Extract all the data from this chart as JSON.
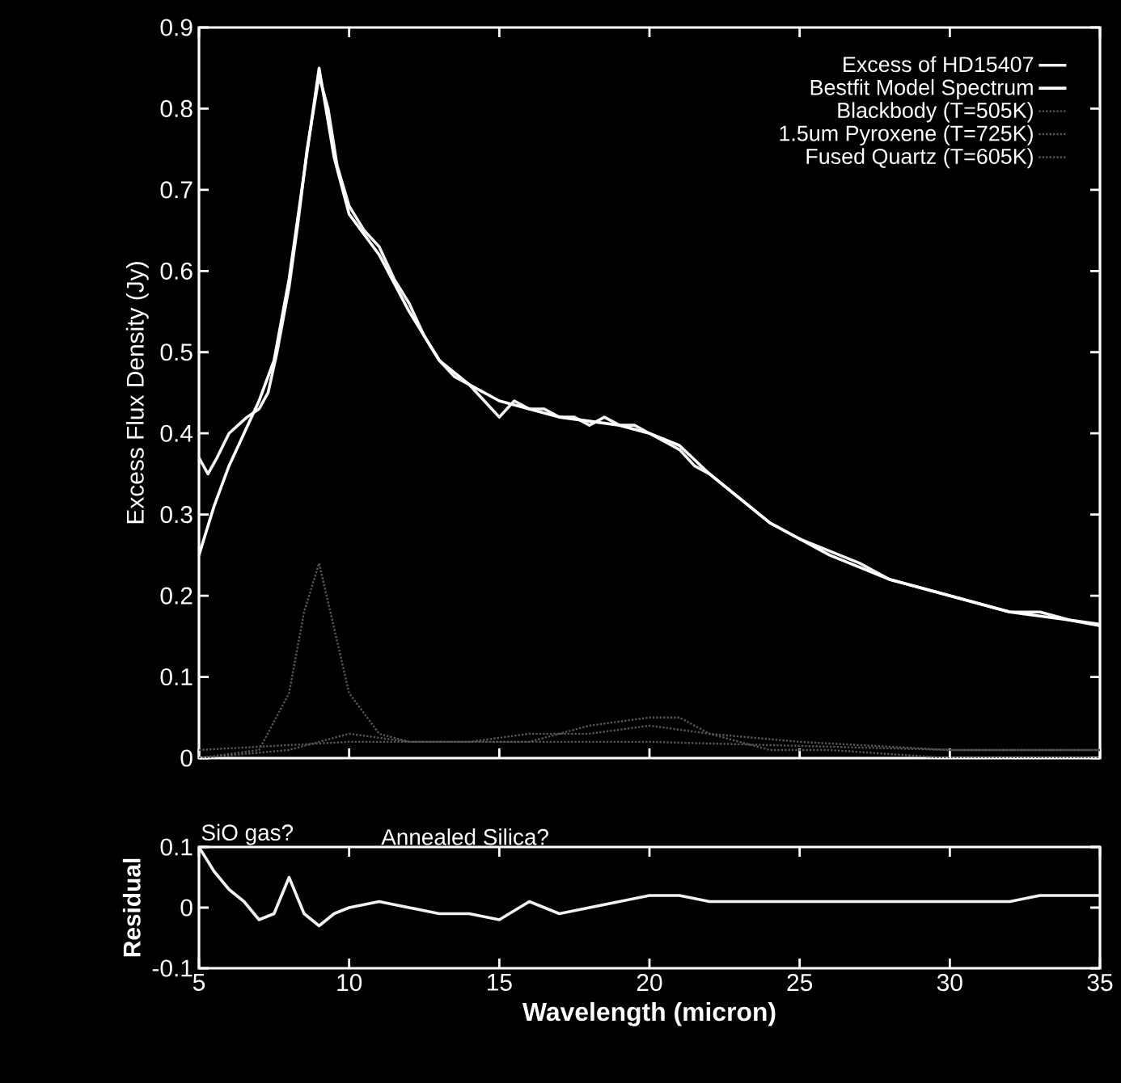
{
  "chart_data": [
    {
      "type": "line",
      "ylabel": "Excess Flux Density (Jy)",
      "xlim": [
        5,
        35
      ],
      "xticks": [
        5,
        10,
        15,
        20,
        25,
        30,
        35
      ],
      "ylim": [
        0,
        0.9
      ],
      "yticks": [
        0,
        0.1,
        0.2,
        0.3,
        0.4,
        0.5,
        0.6,
        0.7,
        0.8,
        0.9
      ],
      "tick_labels": "y",
      "legend": "top right",
      "grid": false,
      "series": [
        {
          "name": "Excess of HD15407",
          "color": "#f2f2f2",
          "line_style": "solid",
          "x": [
            5,
            5.3,
            5.6,
            6,
            6.3,
            6.6,
            7,
            7.3,
            7.6,
            8,
            8.3,
            8.6,
            9,
            9.3,
            9.6,
            10,
            10.5,
            11,
            11.5,
            12,
            12.5,
            13,
            13.5,
            14,
            14.5,
            15,
            15.5,
            16,
            16.5,
            17,
            17.5,
            18,
            18.5,
            19,
            19.5,
            20,
            20.5,
            21,
            21.5,
            22,
            23,
            24,
            25,
            26,
            27,
            28,
            29,
            30,
            31,
            32,
            33,
            34,
            35
          ],
          "values": [
            0.37,
            0.35,
            0.37,
            0.4,
            0.41,
            0.42,
            0.43,
            0.45,
            0.5,
            0.58,
            0.66,
            0.75,
            0.84,
            0.8,
            0.73,
            0.68,
            0.65,
            0.63,
            0.59,
            0.56,
            0.52,
            0.49,
            0.47,
            0.46,
            0.44,
            0.42,
            0.44,
            0.43,
            0.43,
            0.42,
            0.42,
            0.41,
            0.42,
            0.41,
            0.41,
            0.4,
            0.39,
            0.38,
            0.36,
            0.35,
            0.32,
            0.29,
            0.27,
            0.255,
            0.24,
            0.22,
            0.21,
            0.2,
            0.19,
            0.18,
            0.18,
            0.17,
            0.165
          ]
        },
        {
          "name": "Bestfit Model Spectrum",
          "color": "#ffffff",
          "line_style": "solid",
          "x": [
            5,
            5.5,
            6,
            6.5,
            7,
            7.5,
            8,
            8.5,
            9,
            9.5,
            10,
            11,
            12,
            13,
            14,
            15,
            16,
            17,
            18,
            19,
            20,
            21,
            22,
            23,
            24,
            25,
            26,
            27,
            28,
            29,
            30,
            31,
            32,
            33,
            34,
            35
          ],
          "values": [
            0.25,
            0.31,
            0.36,
            0.4,
            0.44,
            0.49,
            0.59,
            0.72,
            0.85,
            0.74,
            0.67,
            0.62,
            0.55,
            0.49,
            0.46,
            0.44,
            0.43,
            0.42,
            0.415,
            0.41,
            0.4,
            0.385,
            0.35,
            0.32,
            0.29,
            0.27,
            0.25,
            0.235,
            0.22,
            0.21,
            0.2,
            0.19,
            0.18,
            0.175,
            0.17,
            0.163
          ]
        },
        {
          "name": "Blackbody (T=505K)",
          "color": "#555555",
          "line_style": "dotted",
          "x": [
            5,
            10,
            15,
            20,
            25,
            30,
            35
          ],
          "values": [
            0.01,
            0.02,
            0.02,
            0.02,
            0.015,
            0.01,
            0.01
          ]
        },
        {
          "name": "1.5um Pyroxene (T=725K)",
          "color": "#555555",
          "line_style": "dotted",
          "x": [
            5,
            8,
            10,
            12,
            14,
            16,
            18,
            20,
            22,
            25,
            30,
            35
          ],
          "values": [
            0,
            0.01,
            0.03,
            0.02,
            0.02,
            0.03,
            0.03,
            0.04,
            0.03,
            0.02,
            0.01,
            0.01
          ]
        },
        {
          "name": "Fused Quartz (T=605K)",
          "color": "#555555",
          "line_style": "dotted",
          "x": [
            5,
            7,
            8,
            8.5,
            9,
            9.5,
            10,
            11,
            12,
            14,
            16,
            18,
            20,
            21,
            22,
            24,
            26,
            30,
            35
          ],
          "values": [
            0,
            0.01,
            0.08,
            0.18,
            0.24,
            0.16,
            0.08,
            0.03,
            0.02,
            0.02,
            0.02,
            0.04,
            0.05,
            0.05,
            0.03,
            0.01,
            0.01,
            0,
            0
          ]
        }
      ]
    },
    {
      "type": "line",
      "xlabel": "Wavelength (micron)",
      "ylabel": "Residual",
      "xlim": [
        5,
        35
      ],
      "xticks": [
        5,
        10,
        15,
        20,
        25,
        30,
        35
      ],
      "ylim": [
        -0.1,
        0.1
      ],
      "yticks": [
        -0.1,
        0,
        0.1
      ],
      "grid": false,
      "annotations": [
        "SiO gas?",
        "Annealed Silica?"
      ],
      "series": [
        {
          "color": "#f2f2f2",
          "line_style": "solid",
          "x": [
            5,
            5.5,
            6,
            6.5,
            7,
            7.5,
            8,
            8.5,
            9,
            9.5,
            10,
            11,
            12,
            13,
            14,
            15,
            16,
            17,
            18,
            19,
            20,
            21,
            22,
            23,
            25,
            27,
            30,
            32,
            33,
            34,
            35
          ],
          "values": [
            0.1,
            0.06,
            0.03,
            0.01,
            -0.02,
            -0.01,
            0.05,
            -0.01,
            -0.03,
            -0.01,
            0.0,
            0.01,
            0.0,
            -0.01,
            -0.01,
            -0.02,
            0.01,
            -0.01,
            0.0,
            0.01,
            0.02,
            0.02,
            0.01,
            0.01,
            0.01,
            0.01,
            0.01,
            0.01,
            0.02,
            0.02,
            0.02
          ]
        }
      ]
    }
  ]
}
